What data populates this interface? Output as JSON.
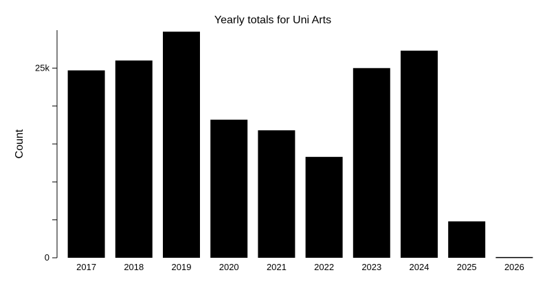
{
  "chart_data": {
    "type": "bar",
    "title": "Yearly totals for Uni Arts",
    "xlabel": "",
    "ylabel": "Count",
    "categories": [
      "2017",
      "2018",
      "2019",
      "2020",
      "2021",
      "2022",
      "2023",
      "2024",
      "2025",
      "2026"
    ],
    "values": [
      24700,
      26000,
      29800,
      18200,
      16800,
      13300,
      25000,
      27300,
      4800,
      100
    ],
    "ylim": [
      0,
      30000
    ],
    "yticks": [
      0,
      5000,
      10000,
      15000,
      20000,
      25000
    ],
    "ytick_labels": [
      "0",
      "",
      "",
      "",
      "",
      "25k"
    ],
    "grid": false,
    "legend": "none",
    "bar_color": "#000000"
  }
}
